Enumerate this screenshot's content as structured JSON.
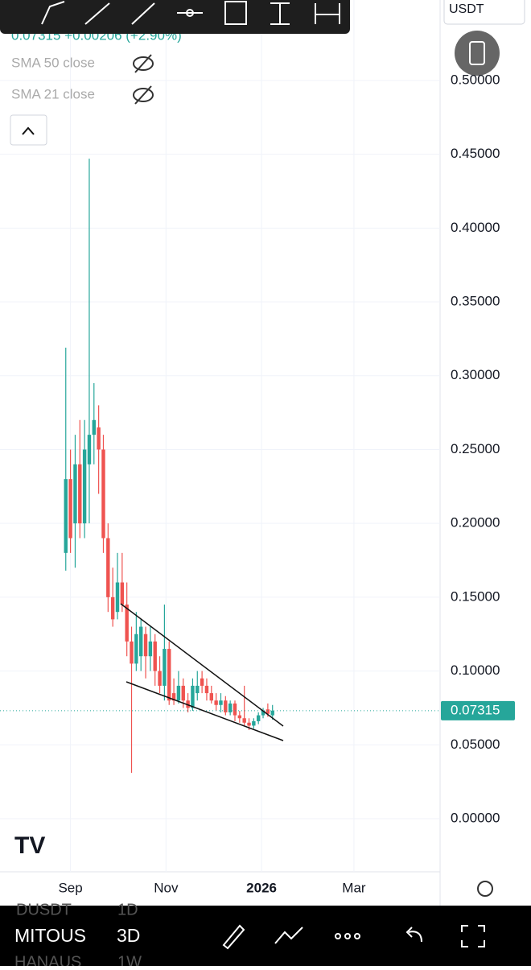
{
  "chart_data": {
    "type": "candlestick",
    "header": {
      "quote": "0.07315 +0.00206 (+2.90%)",
      "indicators": [
        "SMA 50 close",
        "SMA 21 close"
      ],
      "currency": "USDT"
    },
    "x": [
      -3,
      0,
      3,
      6,
      9,
      12,
      15,
      18,
      21,
      24,
      27,
      30,
      33,
      36,
      39,
      42,
      45,
      48,
      51,
      54,
      57,
      60,
      63,
      66,
      69,
      72,
      75,
      78,
      81,
      84,
      87,
      90,
      93,
      96,
      99,
      102,
      105,
      108,
      111,
      114,
      117,
      120,
      123,
      126,
      129
    ],
    "open": [
      0.18,
      0.23,
      0.2,
      0.24,
      0.2,
      0.24,
      0.26,
      0.265,
      0.25,
      0.19,
      0.15,
      0.14,
      0.16,
      0.145,
      0.12,
      0.105,
      0.11,
      0.125,
      0.11,
      0.12,
      0.1,
      0.09,
      0.115,
      0.085,
      0.08,
      0.09,
      0.08,
      0.075,
      0.085,
      0.095,
      0.09,
      0.085,
      0.08,
      0.077,
      0.08,
      0.072,
      0.078,
      0.07,
      0.068,
      0.065,
      0.063,
      0.066,
      0.07,
      0.074,
      0.07
    ],
    "high": [
      0.319,
      0.25,
      0.26,
      0.27,
      0.27,
      0.447,
      0.295,
      0.28,
      0.26,
      0.2,
      0.17,
      0.18,
      0.18,
      0.16,
      0.13,
      0.14,
      0.135,
      0.13,
      0.13,
      0.125,
      0.11,
      0.145,
      0.12,
      0.095,
      0.1,
      0.095,
      0.085,
      0.095,
      0.1,
      0.1,
      0.095,
      0.09,
      0.085,
      0.085,
      0.083,
      0.08,
      0.08,
      0.073,
      0.09,
      0.068,
      0.068,
      0.072,
      0.075,
      0.078,
      0.077
    ],
    "low": [
      0.168,
      0.18,
      0.17,
      0.19,
      0.19,
      0.2,
      0.24,
      0.22,
      0.18,
      0.14,
      0.13,
      0.135,
      0.14,
      0.11,
      0.031,
      0.1,
      0.1,
      0.095,
      0.1,
      0.09,
      0.085,
      0.08,
      0.077,
      0.077,
      0.078,
      0.075,
      0.072,
      0.073,
      0.08,
      0.085,
      0.08,
      0.078,
      0.073,
      0.072,
      0.07,
      0.07,
      0.066,
      0.065,
      0.063,
      0.06,
      0.061,
      0.064,
      0.068,
      0.069,
      0.067
    ],
    "close": [
      0.23,
      0.19,
      0.24,
      0.2,
      0.25,
      0.26,
      0.27,
      0.25,
      0.19,
      0.15,
      0.135,
      0.16,
      0.145,
      0.12,
      0.105,
      0.125,
      0.13,
      0.11,
      0.12,
      0.1,
      0.09,
      0.115,
      0.08,
      0.08,
      0.09,
      0.08,
      0.075,
      0.09,
      0.09,
      0.09,
      0.085,
      0.08,
      0.077,
      0.08,
      0.072,
      0.078,
      0.07,
      0.068,
      0.065,
      0.063,
      0.066,
      0.07,
      0.073,
      0.071,
      0.07315
    ],
    "up_color": "#26a69a",
    "down_color": "#ef5350",
    "last_price": {
      "value": 0.07315,
      "label": "0.07315"
    },
    "xlim": [
      -45,
      236
    ],
    "ylim": [
      -0.036,
      0.5545
    ],
    "xticks": [
      {
        "value": 0,
        "label": "Sep"
      },
      {
        "value": 61,
        "label": "Nov"
      },
      {
        "value": 122,
        "label": "2026"
      },
      {
        "value": 181,
        "label": "Mar"
      }
    ],
    "yticks": [
      {
        "value": 0,
        "label": "0.00000"
      },
      {
        "value": 0.05,
        "label": "0.05000"
      },
      {
        "value": 0.1,
        "label": "0.10000"
      },
      {
        "value": 0.15,
        "label": "0.15000"
      },
      {
        "value": 0.2,
        "label": "0.20000"
      },
      {
        "value": 0.25,
        "label": "0.25000"
      },
      {
        "value": 0.3,
        "label": "0.30000"
      },
      {
        "value": 0.35,
        "label": "0.35000"
      },
      {
        "value": 0.4,
        "label": "0.40000"
      },
      {
        "value": 0.45,
        "label": "0.45000"
      },
      {
        "value": 0.5,
        "label": "0.50000"
      }
    ],
    "grid": true,
    "bottom_bar": {
      "symbol": "MITOUS",
      "mode": "3D",
      "ghost1": "DUSDT",
      "ghost1_tf": "1D",
      "ghost2": "HANAUS",
      "ghost2_tf": "1W"
    }
  }
}
